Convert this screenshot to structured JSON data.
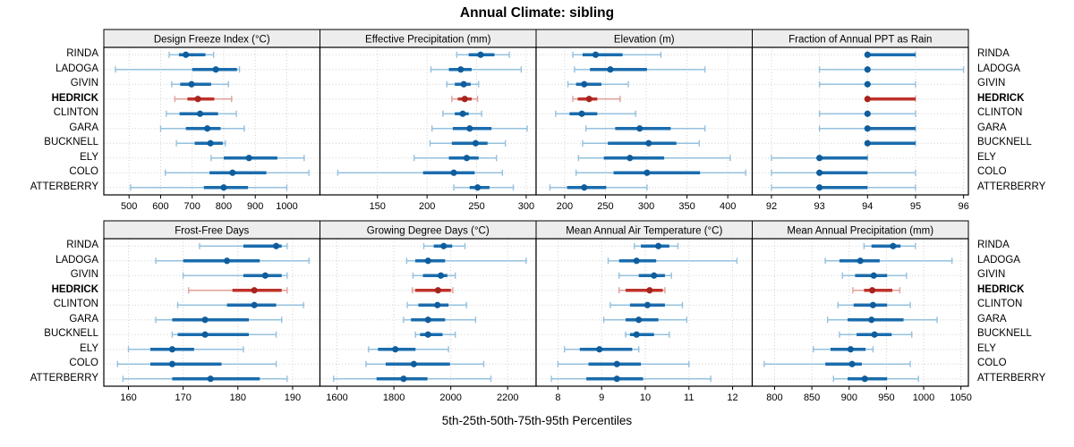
{
  "title": "Annual Climate: sibling",
  "footer": "5th-25th-50th-75th-95th Percentiles",
  "colors": {
    "blue": "#1a6cad",
    "blue_light": "#94c1de",
    "blue_dot": "#0f5d9c",
    "red": "#bf312a",
    "red_light": "#e0a09b",
    "red_dot": "#a7241e",
    "grid": "#d0d0d0",
    "strip_bg": "#ededed",
    "border": "#000000",
    "text": "#000000"
  },
  "chart_data": {
    "type": "scatter",
    "mark": "median-dot-with-percentile-intervals",
    "percentiles": [
      "5th",
      "25th",
      "50th",
      "75th",
      "95th"
    ],
    "legend_position": "none",
    "grid": "dotted",
    "categories": [
      "RINDA",
      "LADOGA",
      "GIVIN",
      "HEDRICK",
      "CLINTON",
      "GARA",
      "BUCKNELL",
      "ELY",
      "COLO",
      "ATTERBERRY"
    ],
    "highlight": "HEDRICK",
    "panels": [
      {
        "title": "Design Freeze Index (°C)",
        "xlim": [
          420,
          1105
        ],
        "ticks": [
          500,
          600,
          700,
          800,
          900,
          1000
        ],
        "values": [
          [
            627,
            658,
            680,
            742,
            768
          ],
          [
            457,
            700,
            775,
            842,
            850
          ],
          [
            635,
            662,
            698,
            760,
            815
          ],
          [
            645,
            685,
            718,
            770,
            825
          ],
          [
            618,
            660,
            725,
            782,
            840
          ],
          [
            600,
            680,
            748,
            790,
            865
          ],
          [
            650,
            708,
            758,
            797,
            805
          ],
          [
            760,
            800,
            880,
            970,
            1055
          ],
          [
            615,
            755,
            828,
            935,
            1070
          ],
          [
            505,
            737,
            800,
            877,
            1000
          ]
        ]
      },
      {
        "title": "Effective Precipitation (mm)",
        "xlim": [
          92,
          310
        ],
        "ticks": [
          150,
          200,
          250,
          300
        ],
        "values": [
          [
            230,
            242,
            254,
            268,
            283
          ],
          [
            204,
            222,
            234,
            245,
            295
          ],
          [
            220,
            228,
            237,
            244,
            252
          ],
          [
            225,
            231,
            238,
            245,
            251
          ],
          [
            216,
            228,
            236,
            242,
            255
          ],
          [
            205,
            226,
            243,
            265,
            301
          ],
          [
            203,
            225,
            249,
            261,
            279
          ],
          [
            187,
            222,
            240,
            252,
            270
          ],
          [
            110,
            196,
            227,
            248,
            276
          ],
          [
            227,
            243,
            251,
            263,
            287
          ]
        ]
      },
      {
        "title": "Elevation (m)",
        "xlim": [
          165,
          430
        ],
        "ticks": [
          200,
          250,
          300,
          350,
          400
        ],
        "values": [
          [
            210,
            222,
            238,
            271,
            318
          ],
          [
            212,
            231,
            256,
            301,
            372
          ],
          [
            204,
            214,
            224,
            245,
            278
          ],
          [
            210,
            216,
            230,
            240,
            268
          ],
          [
            189,
            206,
            221,
            240,
            287
          ],
          [
            226,
            262,
            292,
            330,
            372
          ],
          [
            222,
            253,
            303,
            337,
            365
          ],
          [
            217,
            248,
            280,
            322,
            403
          ],
          [
            214,
            260,
            301,
            366,
            422
          ],
          [
            182,
            203,
            224,
            251,
            301
          ]
        ]
      },
      {
        "title": "Fraction of Annual PPT as Rain",
        "xlim": [
          91.6,
          96.1
        ],
        "ticks": [
          92,
          93,
          94,
          95,
          96
        ],
        "values": [
          [
            94,
            94,
            94,
            95,
            95
          ],
          [
            93,
            94,
            94,
            94,
            96
          ],
          [
            93,
            94,
            94,
            94,
            95
          ],
          [
            94,
            94,
            94,
            95,
            95
          ],
          [
            93,
            94,
            94,
            94,
            95
          ],
          [
            93,
            94,
            94,
            95,
            95
          ],
          [
            94,
            94,
            94,
            95,
            95
          ],
          [
            92,
            93,
            93,
            94,
            94
          ],
          [
            92,
            93,
            93,
            94,
            95
          ],
          [
            92,
            93,
            93,
            94,
            95
          ]
        ]
      },
      {
        "title": "Frost-Free Days",
        "xlim": [
          155.5,
          195
        ],
        "ticks": [
          160,
          170,
          180,
          190
        ],
        "values": [
          [
            173,
            181,
            187,
            188,
            189
          ],
          [
            165,
            170,
            178,
            184,
            193
          ],
          [
            170,
            181,
            185,
            188,
            189
          ],
          [
            171,
            179,
            183,
            188,
            189
          ],
          [
            169,
            178,
            183,
            187,
            192
          ],
          [
            165,
            168,
            174,
            182,
            188
          ],
          [
            168,
            169,
            174,
            182,
            187
          ],
          [
            160,
            164,
            168,
            172,
            181
          ],
          [
            158,
            164,
            168,
            177,
            187
          ],
          [
            159,
            168,
            175,
            184,
            189
          ]
        ]
      },
      {
        "title": "Growing Degree Days (°C)",
        "xlim": [
          1540,
          2300
        ],
        "ticks": [
          1600,
          1800,
          2000,
          2200
        ],
        "values": [
          [
            1905,
            1940,
            1975,
            2005,
            2050
          ],
          [
            1845,
            1875,
            1920,
            1980,
            2265
          ],
          [
            1867,
            1902,
            1965,
            1988,
            2016
          ],
          [
            1865,
            1875,
            1955,
            2000,
            2007
          ],
          [
            1847,
            1886,
            1953,
            1992,
            2055
          ],
          [
            1834,
            1860,
            1920,
            1980,
            2087
          ],
          [
            1876,
            1892,
            1920,
            1971,
            2016
          ],
          [
            1711,
            1744,
            1805,
            1876,
            1992
          ],
          [
            1702,
            1771,
            1870,
            1997,
            2116
          ],
          [
            1588,
            1739,
            1834,
            1918,
            2141
          ]
        ]
      },
      {
        "title": "Mean Annual Air Temperature (°C)",
        "xlim": [
          7.5,
          12.45
        ],
        "ticks": [
          8,
          9,
          10,
          11,
          12
        ],
        "values": [
          [
            9.75,
            9.9,
            10.3,
            10.55,
            10.75
          ],
          [
            9.15,
            9.4,
            9.8,
            10.25,
            12.1
          ],
          [
            9.4,
            9.85,
            10.2,
            10.45,
            10.6
          ],
          [
            9.4,
            9.55,
            10.1,
            10.4,
            10.45
          ],
          [
            9.2,
            9.65,
            10.05,
            10.45,
            10.85
          ],
          [
            9.05,
            9.55,
            9.85,
            10.3,
            10.95
          ],
          [
            9.55,
            9.65,
            9.8,
            10.2,
            10.55
          ],
          [
            8.15,
            8.5,
            8.95,
            9.7,
            9.85
          ],
          [
            8.0,
            8.7,
            9.35,
            9.9,
            11.0
          ],
          [
            7.85,
            8.65,
            9.35,
            9.95,
            11.5
          ]
        ]
      },
      {
        "title": "Mean Annual Precipitation (mm)",
        "xlim": [
          770,
          1060
        ],
        "ticks": [
          800,
          850,
          900,
          950,
          1000,
          1050
        ],
        "values": [
          [
            920,
            930,
            959,
            969,
            989
          ],
          [
            868,
            887,
            915,
            941,
            1038
          ],
          [
            891,
            908,
            933,
            951,
            977
          ],
          [
            905,
            920,
            931,
            958,
            968
          ],
          [
            885,
            906,
            932,
            951,
            982
          ],
          [
            871,
            898,
            930,
            973,
            1018
          ],
          [
            887,
            910,
            934,
            957,
            984
          ],
          [
            852,
            875,
            902,
            922,
            932
          ],
          [
            786,
            868,
            904,
            917,
            982
          ],
          [
            879,
            898,
            921,
            951,
            993
          ]
        ]
      }
    ]
  }
}
